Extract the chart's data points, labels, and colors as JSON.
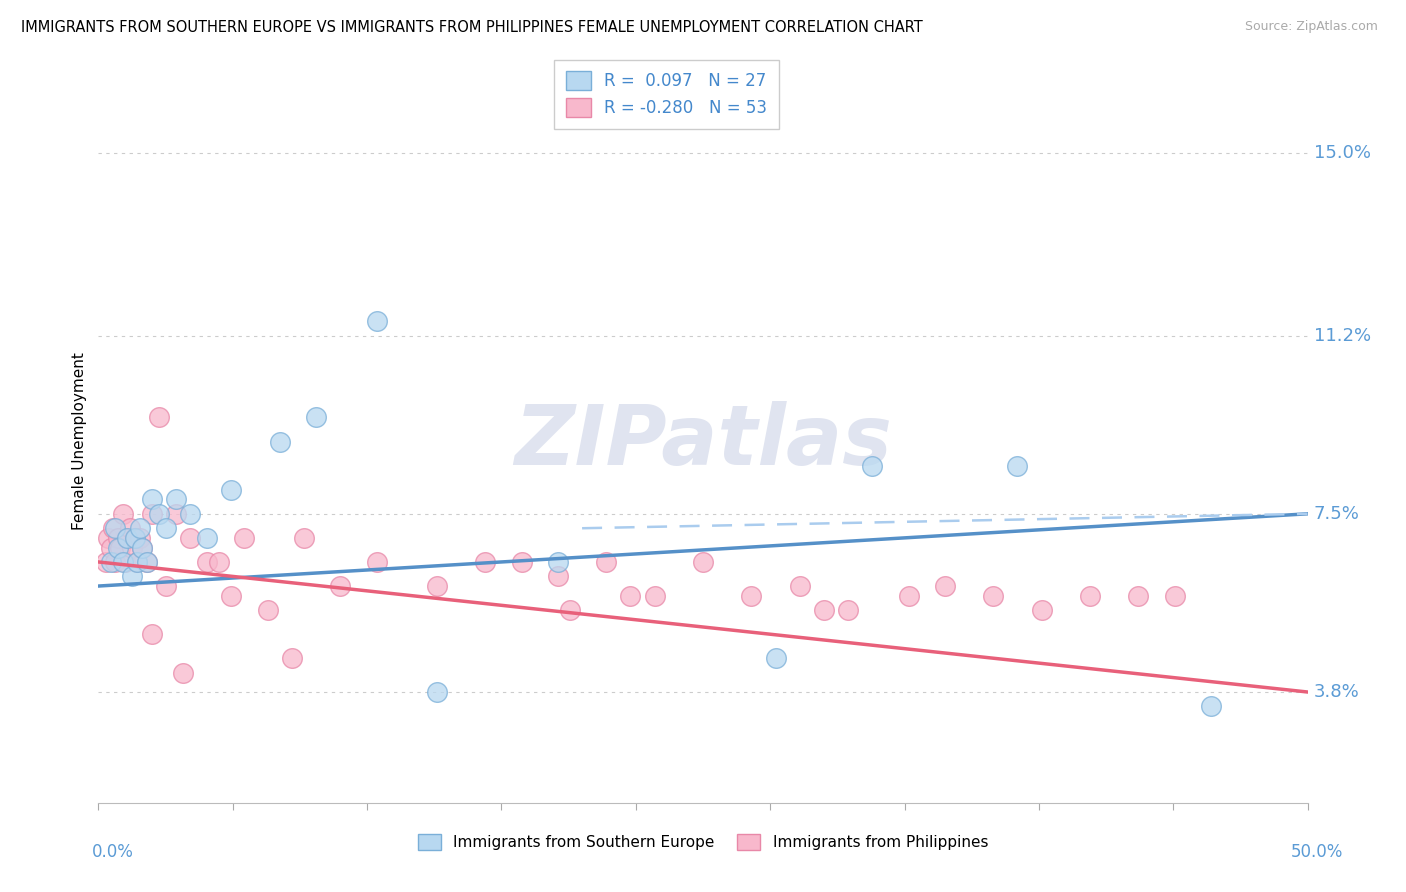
{
  "title": "IMMIGRANTS FROM SOUTHERN EUROPE VS IMMIGRANTS FROM PHILIPPINES FEMALE UNEMPLOYMENT CORRELATION CHART",
  "source": "Source: ZipAtlas.com",
  "ylabel": "Female Unemployment",
  "y_ticks": [
    3.8,
    7.5,
    11.2,
    15.0
  ],
  "y_tick_labels": [
    "3.8%",
    "7.5%",
    "11.2%",
    "15.0%"
  ],
  "x_min": 0.0,
  "x_max": 50.0,
  "y_min": 1.5,
  "y_max": 16.5,
  "legend_r1": "R =  0.097   N = 27",
  "legend_r2": "R = -0.280   N = 53",
  "color_blue": "#B8D8F0",
  "color_pink": "#F8B8CC",
  "color_blue_edge": "#7AAFD8",
  "color_pink_edge": "#E888A8",
  "color_blue_line": "#5590C8",
  "color_pink_line": "#E8607A",
  "color_blue_dashed": "#AACCEE",
  "watermark_color": "#E0E4F0",
  "label_blue": "Immigrants from Southern Europe",
  "label_pink": "Immigrants from Philippines",
  "blue_x": [
    0.5,
    0.7,
    0.8,
    1.0,
    1.2,
    1.4,
    1.5,
    1.6,
    1.7,
    1.8,
    2.0,
    2.2,
    2.5,
    2.8,
    3.2,
    3.8,
    4.5,
    5.5,
    7.5,
    9.0,
    11.5,
    14.0,
    19.0,
    28.0,
    32.0,
    38.0,
    46.0
  ],
  "blue_y": [
    6.5,
    7.2,
    6.8,
    6.5,
    7.0,
    6.2,
    7.0,
    6.5,
    7.2,
    6.8,
    6.5,
    7.8,
    7.5,
    7.2,
    7.8,
    7.5,
    7.0,
    8.0,
    9.0,
    9.5,
    11.5,
    3.8,
    6.5,
    4.5,
    8.5,
    8.5,
    3.5
  ],
  "pink_x": [
    0.3,
    0.4,
    0.5,
    0.6,
    0.7,
    0.8,
    0.9,
    1.0,
    1.1,
    1.2,
    1.3,
    1.4,
    1.5,
    1.6,
    1.7,
    1.8,
    2.0,
    2.2,
    2.5,
    2.8,
    3.2,
    3.8,
    4.5,
    5.0,
    5.5,
    6.0,
    7.0,
    8.5,
    10.0,
    11.5,
    14.0,
    16.0,
    17.5,
    19.0,
    21.0,
    23.0,
    25.0,
    27.0,
    29.0,
    31.0,
    33.5,
    35.0,
    37.0,
    39.0,
    41.0,
    43.0,
    44.5,
    30.0,
    22.0,
    19.5,
    8.0,
    3.5,
    2.2
  ],
  "pink_y": [
    6.5,
    7.0,
    6.8,
    7.2,
    6.5,
    7.0,
    6.8,
    7.5,
    6.5,
    7.0,
    7.2,
    6.8,
    7.0,
    6.5,
    7.0,
    6.8,
    6.5,
    7.5,
    9.5,
    6.0,
    7.5,
    7.0,
    6.5,
    6.5,
    5.8,
    7.0,
    5.5,
    7.0,
    6.0,
    6.5,
    6.0,
    6.5,
    6.5,
    6.2,
    6.5,
    5.8,
    6.5,
    5.8,
    6.0,
    5.5,
    5.8,
    6.0,
    5.8,
    5.5,
    5.8,
    5.8,
    5.8,
    5.5,
    5.8,
    5.5,
    4.5,
    4.2,
    5.0
  ]
}
